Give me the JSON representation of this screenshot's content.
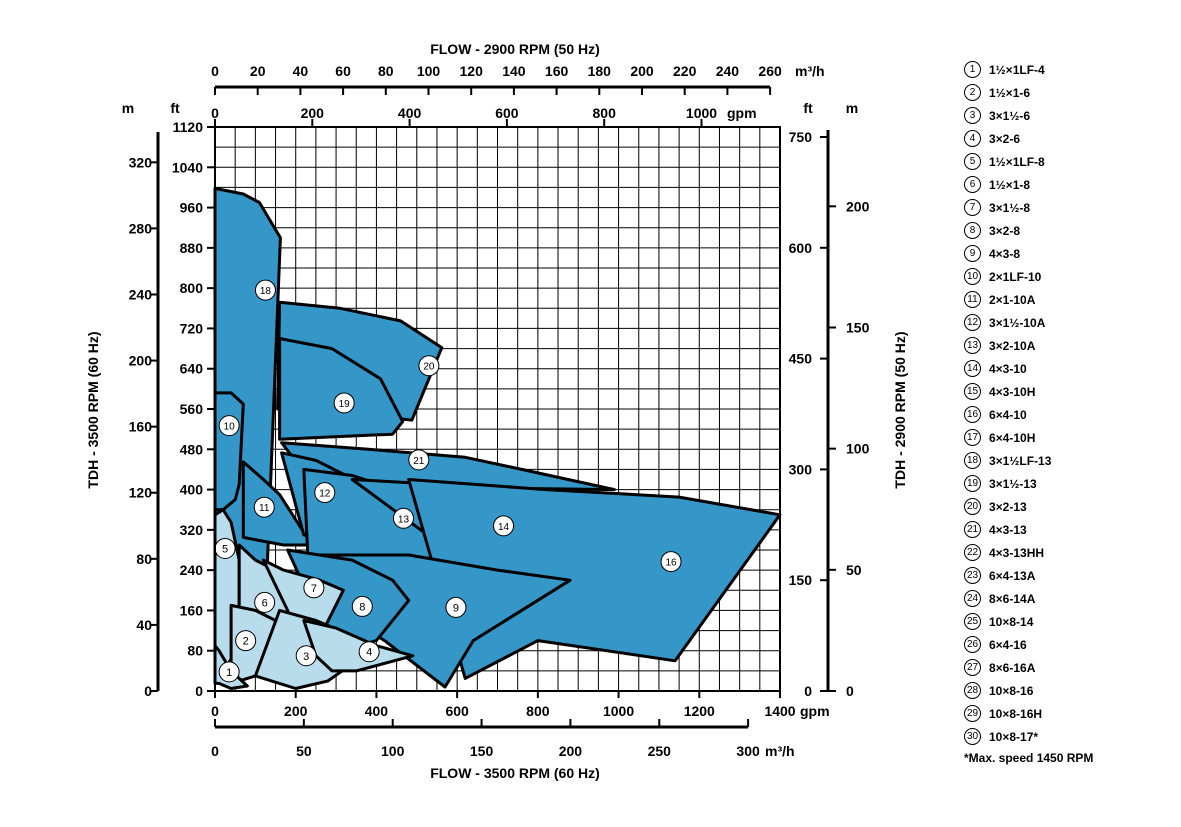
{
  "chart_data": {
    "type": "area",
    "title_top": "FLOW - 2900 RPM (50 Hz)",
    "title_bottom": "FLOW - 3500 RPM (60 Hz)",
    "ylabel_left": "TDH - 3500 RPM (60 Hz)",
    "ylabel_right": "TDH - 2900 RPM (50 Hz)",
    "x_bottom_gpm": {
      "unit": "gpm",
      "ticks": [
        0,
        200,
        400,
        600,
        800,
        1000,
        1200,
        1400
      ],
      "range": [
        0,
        1400
      ]
    },
    "x_bottom_m3h": {
      "unit": "m³/h",
      "ticks": [
        "0",
        "50",
        "100",
        "150",
        "200",
        "250",
        "300"
      ]
    },
    "x_top_m3h": {
      "unit": "m³/h",
      "ticks": [
        "0",
        "20",
        "40",
        "60",
        "80",
        "100",
        "120",
        "140",
        "160",
        "180",
        "200",
        "220",
        "240",
        "260"
      ]
    },
    "x_top_gpm": {
      "unit": "gpm",
      "ticks": [
        "0",
        "200",
        "400",
        "600",
        "800",
        "1000"
      ]
    },
    "y_left_ft": {
      "unit": "ft",
      "ticks": [
        0,
        80,
        160,
        240,
        320,
        400,
        480,
        560,
        640,
        720,
        800,
        880,
        960,
        1040,
        1120
      ],
      "range": [
        0,
        1120
      ]
    },
    "y_left_m": {
      "unit": "m",
      "ticks": [
        "0",
        "40",
        "80",
        "120",
        "160",
        "200",
        "240",
        "280",
        "320"
      ]
    },
    "y_right_ft": {
      "unit": "ft",
      "ticks": [
        "0",
        "150",
        "300",
        "450",
        "600",
        "750"
      ]
    },
    "y_right_m": {
      "unit": "m",
      "ticks": [
        "0",
        "50",
        "100",
        "150",
        "200"
      ]
    },
    "grid": true,
    "colors": {
      "dark": "#3596c8",
      "light": "#b8dceb",
      "outline": "#000000",
      "grid": "#000000"
    },
    "regions": [
      {
        "id": "18",
        "shade": "dark",
        "label_at": [
          125,
          796
        ],
        "points": [
          [
            0,
            998
          ],
          [
            70,
            987
          ],
          [
            110,
            970
          ],
          [
            162,
            900
          ],
          [
            128,
            220
          ],
          [
            50,
            200
          ],
          [
            5,
            210
          ],
          [
            0,
            210
          ]
        ]
      },
      {
        "id": "20",
        "shade": "dark",
        "label_at": [
          530,
          646
        ],
        "points": [
          [
            160,
            772
          ],
          [
            310,
            760
          ],
          [
            460,
            735
          ],
          [
            562,
            682
          ],
          [
            488,
            538
          ],
          [
            220,
            560
          ],
          [
            155,
            560
          ]
        ]
      },
      {
        "id": "19",
        "shade": "dark",
        "label_at": [
          320,
          572
        ],
        "points": [
          [
            160,
            700
          ],
          [
            290,
            680
          ],
          [
            410,
            620
          ],
          [
            465,
            535
          ],
          [
            440,
            510
          ],
          [
            160,
            500
          ]
        ]
      },
      {
        "id": "10",
        "shade": "dark",
        "label_at": [
          35,
          527
        ],
        "points": [
          [
            0,
            592
          ],
          [
            40,
            592
          ],
          [
            70,
            570
          ],
          [
            60,
            410
          ],
          [
            50,
            380
          ],
          [
            20,
            360
          ],
          [
            0,
            360
          ]
        ]
      },
      {
        "id": "21",
        "shade": "dark",
        "label_at": [
          505,
          459
        ],
        "points": [
          [
            165,
            493
          ],
          [
            380,
            480
          ],
          [
            620,
            464
          ],
          [
            760,
            440
          ],
          [
            990,
            400
          ],
          [
            500,
            405
          ],
          [
            240,
            415
          ]
        ]
      },
      {
        "id": "11",
        "shade": "dark",
        "label_at": [
          122,
          365
        ],
        "points": [
          [
            70,
            455
          ],
          [
            120,
            420
          ],
          [
            160,
            390
          ],
          [
            240,
            290
          ],
          [
            170,
            290
          ],
          [
            70,
            305
          ]
        ]
      },
      {
        "id": "12",
        "shade": "dark",
        "label_at": [
          272,
          394
        ],
        "points": [
          [
            165,
            473
          ],
          [
            250,
            458
          ],
          [
            320,
            430
          ],
          [
            370,
            370
          ],
          [
            400,
            300
          ],
          [
            320,
            310
          ],
          [
            220,
            310
          ]
        ]
      },
      {
        "id": "13",
        "shade": "dark",
        "label_at": [
          467,
          343
        ],
        "points": [
          [
            220,
            440
          ],
          [
            340,
            428
          ],
          [
            430,
            405
          ],
          [
            510,
            340
          ],
          [
            630,
            260
          ],
          [
            230,
            270
          ]
        ]
      },
      {
        "id": "14",
        "shade": "dark",
        "label_at": [
          715,
          328
        ],
        "points": [
          [
            340,
            420
          ],
          [
            560,
            410
          ],
          [
            810,
            390
          ],
          [
            950,
            380
          ],
          [
            750,
            260
          ],
          [
            620,
            255
          ]
        ]
      },
      {
        "id": "16",
        "shade": "dark",
        "label_at": [
          1130,
          257
        ],
        "points": [
          [
            480,
            420
          ],
          [
            820,
            400
          ],
          [
            1150,
            385
          ],
          [
            1400,
            350
          ],
          [
            1140,
            60
          ],
          [
            800,
            100
          ],
          [
            620,
            25
          ]
        ]
      },
      {
        "id": "9",
        "shade": "dark",
        "label_at": [
          597,
          166
        ],
        "points": [
          [
            240,
            270
          ],
          [
            480,
            270
          ],
          [
            700,
            240
          ],
          [
            880,
            220
          ],
          [
            640,
            100
          ],
          [
            570,
            8
          ],
          [
            420,
            100
          ],
          [
            300,
            160
          ]
        ]
      },
      {
        "id": "8",
        "shade": "dark",
        "label_at": [
          365,
          168
        ],
        "points": [
          [
            180,
            280
          ],
          [
            340,
            260
          ],
          [
            440,
            220
          ],
          [
            480,
            180
          ],
          [
            400,
            100
          ],
          [
            310,
            80
          ],
          [
            260,
            140
          ]
        ]
      },
      {
        "id": "5",
        "shade": "light",
        "label_at": [
          25,
          283
        ],
        "points": [
          [
            0,
            350
          ],
          [
            20,
            360
          ],
          [
            40,
            335
          ],
          [
            60,
            260
          ],
          [
            60,
            90
          ],
          [
            30,
            50
          ],
          [
            10,
            30
          ],
          [
            0,
            30
          ]
        ]
      },
      {
        "id": "6",
        "shade": "light",
        "label_at": [
          123,
          176
        ],
        "points": [
          [
            60,
            290
          ],
          [
            100,
            260
          ],
          [
            150,
            240
          ],
          [
            220,
            165
          ],
          [
            205,
            130
          ],
          [
            120,
            125
          ],
          [
            60,
            125
          ]
        ]
      },
      {
        "id": "7",
        "shade": "light",
        "label_at": [
          245,
          205
        ],
        "points": [
          [
            120,
            260
          ],
          [
            170,
            240
          ],
          [
            260,
            220
          ],
          [
            318,
            200
          ],
          [
            268,
            120
          ],
          [
            200,
            120
          ],
          [
            180,
            160
          ]
        ]
      },
      {
        "id": "2",
        "shade": "light",
        "label_at": [
          76,
          100
        ],
        "points": [
          [
            40,
            170
          ],
          [
            100,
            160
          ],
          [
            150,
            140
          ],
          [
            200,
            95
          ],
          [
            150,
            50
          ],
          [
            100,
            30
          ],
          [
            60,
            20
          ],
          [
            40,
            20
          ]
        ]
      },
      {
        "id": "3",
        "shade": "light",
        "label_at": [
          226,
          70
        ],
        "points": [
          [
            160,
            160
          ],
          [
            250,
            140
          ],
          [
            340,
            110
          ],
          [
            368,
            70
          ],
          [
            280,
            20
          ],
          [
            200,
            5
          ],
          [
            100,
            30
          ]
        ]
      },
      {
        "id": "4",
        "shade": "light",
        "label_at": [
          382,
          78
        ],
        "points": [
          [
            220,
            140
          ],
          [
            300,
            125
          ],
          [
            400,
            90
          ],
          [
            490,
            70
          ],
          [
            350,
            40
          ],
          [
            290,
            40
          ],
          [
            250,
            70
          ]
        ]
      },
      {
        "id": "1",
        "shade": "light",
        "label_at": [
          35,
          38
        ],
        "points": [
          [
            0,
            90
          ],
          [
            10,
            80
          ],
          [
            40,
            40
          ],
          [
            80,
            10
          ],
          [
            40,
            5
          ],
          [
            10,
            15
          ],
          [
            0,
            15
          ]
        ]
      }
    ]
  },
  "legend": {
    "items": [
      {
        "num": "1",
        "label": "1½×1LF-4"
      },
      {
        "num": "2",
        "label": "1½×1-6"
      },
      {
        "num": "3",
        "label": "3×1½-6"
      },
      {
        "num": "4",
        "label": "3×2-6"
      },
      {
        "num": "5",
        "label": "1½×1LF-8"
      },
      {
        "num": "6",
        "label": "1½×1-8"
      },
      {
        "num": "7",
        "label": "3×1½-8"
      },
      {
        "num": "8",
        "label": "3×2-8"
      },
      {
        "num": "9",
        "label": "4×3-8"
      },
      {
        "num": "10",
        "label": "2×1LF-10"
      },
      {
        "num": "11",
        "label": "2×1-10A"
      },
      {
        "num": "12",
        "label": "3×1½-10A"
      },
      {
        "num": "13",
        "label": "3×2-10A"
      },
      {
        "num": "14",
        "label": "4×3-10"
      },
      {
        "num": "15",
        "label": "4×3-10H"
      },
      {
        "num": "16",
        "label": "6×4-10"
      },
      {
        "num": "17",
        "label": "6×4-10H"
      },
      {
        "num": "18",
        "label": "3×1½LF-13"
      },
      {
        "num": "19",
        "label": "3×1½-13"
      },
      {
        "num": "20",
        "label": "3×2-13"
      },
      {
        "num": "21",
        "label": "4×3-13"
      },
      {
        "num": "22",
        "label": "4×3-13HH"
      },
      {
        "num": "23",
        "label": "6×4-13A"
      },
      {
        "num": "24",
        "label": "8×6-14A"
      },
      {
        "num": "25",
        "label": "10×8-14"
      },
      {
        "num": "26",
        "label": "6×4-16"
      },
      {
        "num": "27",
        "label": "8×6-16A"
      },
      {
        "num": "28",
        "label": "10×8-16"
      },
      {
        "num": "29",
        "label": "10×8-16H"
      },
      {
        "num": "30",
        "label": "10×8-17*"
      }
    ],
    "note": "*Max. speed 1450 RPM"
  }
}
